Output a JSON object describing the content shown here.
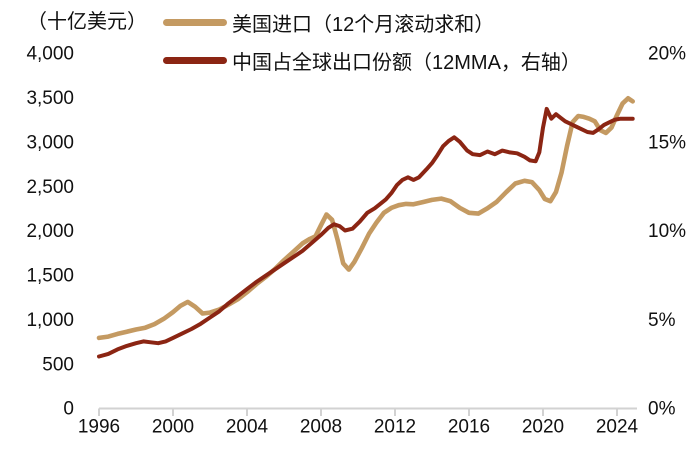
{
  "chart_data": {
    "type": "line",
    "title": "",
    "ylabel_left": "（十亿美元）",
    "grid": false,
    "legend_position": "top",
    "background": "#ffffff",
    "axis_color": "#d2d2d2",
    "text_color": "#111111",
    "x_axis": {
      "tick_years": [
        1996,
        2000,
        2004,
        2008,
        2012,
        2016,
        2020,
        2024
      ],
      "range": [
        1996,
        2025.1
      ]
    },
    "y_axis_left": {
      "unit": "十亿美元",
      "tick_labels": [
        "0",
        "500",
        "1,000",
        "1,500",
        "2,000",
        "2,500",
        "3,000",
        "3,500",
        "4,000"
      ],
      "tick_values": [
        0,
        500,
        1000,
        1500,
        2000,
        2500,
        3000,
        3500,
        4000
      ],
      "range": [
        0,
        4000
      ]
    },
    "y_axis_right": {
      "tick_labels": [
        "0%",
        "5%",
        "10%",
        "15%",
        "20%"
      ],
      "tick_values": [
        0,
        5,
        10,
        15,
        20
      ],
      "range": [
        0,
        20
      ]
    },
    "series": [
      {
        "name": "美国进口（12个月滚动求和）",
        "axis": "left",
        "color": "#C49A62",
        "points": [
          [
            1996.0,
            790
          ],
          [
            1996.5,
            805
          ],
          [
            1997.0,
            835
          ],
          [
            1997.5,
            860
          ],
          [
            1998.0,
            885
          ],
          [
            1998.5,
            905
          ],
          [
            1999.0,
            945
          ],
          [
            1999.5,
            1005
          ],
          [
            2000.0,
            1080
          ],
          [
            2000.4,
            1150
          ],
          [
            2000.8,
            1195
          ],
          [
            2001.2,
            1140
          ],
          [
            2001.6,
            1065
          ],
          [
            2002.0,
            1075
          ],
          [
            2002.5,
            1110
          ],
          [
            2003.0,
            1165
          ],
          [
            2003.5,
            1225
          ],
          [
            2004.0,
            1305
          ],
          [
            2004.5,
            1395
          ],
          [
            2005.0,
            1475
          ],
          [
            2005.5,
            1565
          ],
          [
            2006.0,
            1665
          ],
          [
            2006.5,
            1760
          ],
          [
            2007.0,
            1855
          ],
          [
            2007.4,
            1905
          ],
          [
            2007.7,
            1935
          ],
          [
            2008.0,
            2060
          ],
          [
            2008.3,
            2180
          ],
          [
            2008.6,
            2120
          ],
          [
            2008.9,
            1890
          ],
          [
            2009.2,
            1630
          ],
          [
            2009.5,
            1560
          ],
          [
            2009.8,
            1645
          ],
          [
            2010.2,
            1800
          ],
          [
            2010.6,
            1965
          ],
          [
            2011.0,
            2090
          ],
          [
            2011.4,
            2200
          ],
          [
            2011.8,
            2255
          ],
          [
            2012.2,
            2285
          ],
          [
            2012.6,
            2300
          ],
          [
            2013.0,
            2295
          ],
          [
            2013.5,
            2320
          ],
          [
            2014.0,
            2345
          ],
          [
            2014.5,
            2360
          ],
          [
            2015.0,
            2330
          ],
          [
            2015.5,
            2255
          ],
          [
            2016.0,
            2200
          ],
          [
            2016.5,
            2190
          ],
          [
            2017.0,
            2250
          ],
          [
            2017.5,
            2325
          ],
          [
            2018.0,
            2430
          ],
          [
            2018.5,
            2530
          ],
          [
            2019.0,
            2560
          ],
          [
            2019.4,
            2545
          ],
          [
            2019.8,
            2455
          ],
          [
            2020.1,
            2355
          ],
          [
            2020.4,
            2330
          ],
          [
            2020.7,
            2435
          ],
          [
            2021.0,
            2650
          ],
          [
            2021.3,
            2950
          ],
          [
            2021.6,
            3220
          ],
          [
            2021.9,
            3290
          ],
          [
            2022.2,
            3280
          ],
          [
            2022.5,
            3260
          ],
          [
            2022.8,
            3230
          ],
          [
            2023.1,
            3130
          ],
          [
            2023.4,
            3100
          ],
          [
            2023.7,
            3160
          ],
          [
            2024.0,
            3300
          ],
          [
            2024.3,
            3430
          ],
          [
            2024.6,
            3490
          ],
          [
            2024.85,
            3455
          ]
        ]
      },
      {
        "name": "中国占全球出口份额（12MMA，右轴）",
        "axis": "right",
        "color": "#8B2513",
        "points": [
          [
            1996.0,
            2.9
          ],
          [
            1996.5,
            3.05
          ],
          [
            1997.0,
            3.3
          ],
          [
            1997.5,
            3.5
          ],
          [
            1998.0,
            3.65
          ],
          [
            1998.4,
            3.75
          ],
          [
            1998.8,
            3.7
          ],
          [
            1999.2,
            3.65
          ],
          [
            1999.6,
            3.75
          ],
          [
            2000.0,
            3.95
          ],
          [
            2000.5,
            4.2
          ],
          [
            2001.0,
            4.45
          ],
          [
            2001.5,
            4.75
          ],
          [
            2002.0,
            5.1
          ],
          [
            2002.5,
            5.45
          ],
          [
            2003.0,
            5.9
          ],
          [
            2003.5,
            6.3
          ],
          [
            2004.0,
            6.7
          ],
          [
            2004.5,
            7.1
          ],
          [
            2005.0,
            7.45
          ],
          [
            2005.5,
            7.8
          ],
          [
            2006.0,
            8.15
          ],
          [
            2006.5,
            8.5
          ],
          [
            2007.0,
            8.85
          ],
          [
            2007.5,
            9.3
          ],
          [
            2008.0,
            9.75
          ],
          [
            2008.4,
            10.15
          ],
          [
            2008.7,
            10.35
          ],
          [
            2009.0,
            10.25
          ],
          [
            2009.3,
            10.0
          ],
          [
            2009.7,
            10.1
          ],
          [
            2010.1,
            10.5
          ],
          [
            2010.5,
            11.0
          ],
          [
            2010.9,
            11.25
          ],
          [
            2011.2,
            11.5
          ],
          [
            2011.5,
            11.75
          ],
          [
            2011.8,
            12.1
          ],
          [
            2012.1,
            12.55
          ],
          [
            2012.4,
            12.85
          ],
          [
            2012.7,
            13.0
          ],
          [
            2013.0,
            12.85
          ],
          [
            2013.3,
            13.0
          ],
          [
            2013.7,
            13.45
          ],
          [
            2014.0,
            13.8
          ],
          [
            2014.3,
            14.25
          ],
          [
            2014.6,
            14.75
          ],
          [
            2014.9,
            15.05
          ],
          [
            2015.2,
            15.25
          ],
          [
            2015.5,
            15.0
          ],
          [
            2015.9,
            14.5
          ],
          [
            2016.2,
            14.3
          ],
          [
            2016.6,
            14.25
          ],
          [
            2017.0,
            14.45
          ],
          [
            2017.4,
            14.3
          ],
          [
            2017.8,
            14.5
          ],
          [
            2018.2,
            14.4
          ],
          [
            2018.6,
            14.35
          ],
          [
            2019.0,
            14.15
          ],
          [
            2019.3,
            13.95
          ],
          [
            2019.6,
            13.9
          ],
          [
            2019.8,
            14.4
          ],
          [
            2020.0,
            15.8
          ],
          [
            2020.2,
            16.85
          ],
          [
            2020.45,
            16.3
          ],
          [
            2020.7,
            16.55
          ],
          [
            2020.95,
            16.35
          ],
          [
            2021.2,
            16.15
          ],
          [
            2021.5,
            16.0
          ],
          [
            2021.8,
            15.85
          ],
          [
            2022.1,
            15.7
          ],
          [
            2022.4,
            15.55
          ],
          [
            2022.7,
            15.5
          ],
          [
            2023.0,
            15.7
          ],
          [
            2023.3,
            15.95
          ],
          [
            2023.6,
            16.1
          ],
          [
            2023.9,
            16.25
          ],
          [
            2024.2,
            16.3
          ],
          [
            2024.5,
            16.3
          ],
          [
            2024.85,
            16.3
          ]
        ]
      }
    ]
  }
}
